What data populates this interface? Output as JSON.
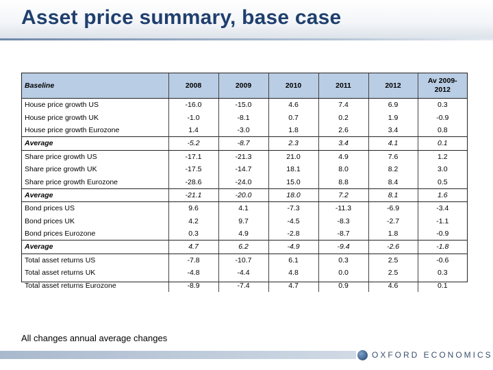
{
  "title": "Asset price summary, base case",
  "footnote": "All changes annual average changes",
  "logo": {
    "text": "OXFORD ECONOMICS",
    "icon": "globe-icon"
  },
  "colors": {
    "title": "#1f3f6e",
    "header_fill": "#b9cde4",
    "band": "#c9d4e1"
  },
  "table": {
    "header": {
      "label": "Baseline",
      "years": [
        "2008",
        "2009",
        "2010",
        "2011",
        "2012"
      ],
      "avg_line1": "Av 2009-",
      "avg_line2": "2012"
    },
    "rows": [
      {
        "label": "House price growth US",
        "values": [
          "-16.0",
          "-15.0",
          "4.6",
          "7.4",
          "6.9",
          "0.3"
        ]
      },
      {
        "label": "House price growth UK",
        "values": [
          "-1.0",
          "-8.1",
          "0.7",
          "0.2",
          "1.9",
          "-0.9"
        ]
      },
      {
        "label": "House price growth Eurozone",
        "values": [
          "1.4",
          "-3.0",
          "1.8",
          "2.6",
          "3.4",
          "0.8"
        ]
      },
      {
        "label": "Average",
        "avg": true,
        "values": [
          "-5.2",
          "-8.7",
          "2.3",
          "3.4",
          "4.1",
          "0.1"
        ]
      },
      {
        "label": "Share price growth US",
        "values": [
          "-17.1",
          "-21.3",
          "21.0",
          "4.9",
          "7.6",
          "1.2"
        ]
      },
      {
        "label": "Share price growth UK",
        "values": [
          "-17.5",
          "-14.7",
          "18.1",
          "8.0",
          "8.2",
          "3.0"
        ]
      },
      {
        "label": "Share price growth Eurozone",
        "values": [
          "-28.6",
          "-24.0",
          "15.0",
          "8.8",
          "8.4",
          "0.5"
        ]
      },
      {
        "label": "Average",
        "avg": true,
        "values": [
          "-21.1",
          "-20.0",
          "18.0",
          "7.2",
          "8.1",
          "1.6"
        ]
      },
      {
        "label": "Bond prices US",
        "values": [
          "9.6",
          "4.1",
          "-7.3",
          "-11.3",
          "-6.9",
          "-3.4"
        ]
      },
      {
        "label": "Bond prices UK",
        "values": [
          "4.2",
          "9.7",
          "-4.5",
          "-8.3",
          "-2.7",
          "-1.1"
        ]
      },
      {
        "label": "Bond prices Eurozone",
        "values": [
          "0.3",
          "4.9",
          "-2.8",
          "-8.7",
          "1.8",
          "-0.9"
        ]
      },
      {
        "label": "Average",
        "avg": true,
        "values": [
          "4.7",
          "6.2",
          "-4.9",
          "-9.4",
          "-2.6",
          "-1.8"
        ]
      },
      {
        "label": "Total asset returns US",
        "values": [
          "-7.8",
          "-10.7",
          "6.1",
          "0.3",
          "2.5",
          "-0.6"
        ]
      },
      {
        "label": "Total asset returns UK",
        "values": [
          "-4.8",
          "-4.4",
          "4.8",
          "0.0",
          "2.5",
          "0.3"
        ]
      },
      {
        "label": "Total asset returns Eurozone",
        "values": [
          "-8.9",
          "-7.4",
          "4.7",
          "0.9",
          "4.6",
          "0.1"
        ]
      }
    ]
  }
}
